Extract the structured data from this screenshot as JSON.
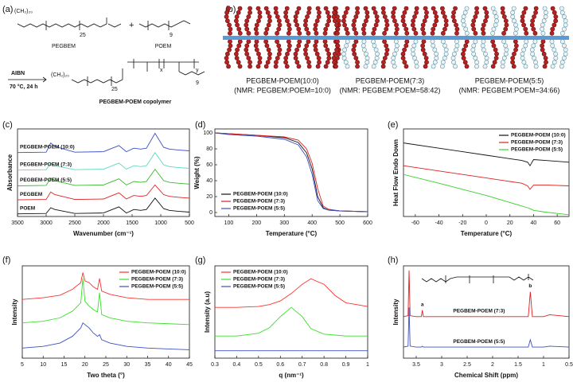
{
  "figure": {
    "panel_a": {
      "label": "(a)",
      "monomer1": {
        "alkyl": "(CH₂)₂₀",
        "repeat": "25",
        "name": "PEGBEM"
      },
      "plus": "+",
      "monomer2": {
        "repeat": "9",
        "name": "POEM"
      },
      "initiator": "AIBN",
      "conditions": "70 °C, 24 h",
      "product": {
        "alkyl": "(CH₂)₂₀",
        "repeat1": "25",
        "x": "x",
        "y": "y",
        "repeat2": "9",
        "name": "PEGBEM-POEM copolymer"
      }
    },
    "panel_b": {
      "label": "(b)",
      "brushes": [
        {
          "name": "PEGBEM-POEM(10:0)",
          "nmr": "(NMR: PEGBEM:POEM=10:0)"
        },
        {
          "name": "PEGBEM-POEM(7:3)",
          "nmr": "(NMR: PEGBEM:POEM=58:42)"
        },
        {
          "name": "PEGBEM-POEM(5:5)",
          "nmr": "(NMR: PEGBEM:POEM=34:66)"
        }
      ]
    }
  },
  "chart_data": [
    {
      "type": "line",
      "label": "(c)",
      "xlabel": "Wavenumber (cm⁻¹)",
      "ylabel": "Absorbance",
      "legend": "inline",
      "xlim": [
        3500,
        500
      ],
      "xticks": [
        3500,
        3000,
        2500,
        2000,
        1500,
        1000,
        500
      ],
      "ylim": [
        0,
        10
      ],
      "x": [
        3500,
        3000,
        2920,
        2850,
        2500,
        2000,
        1730,
        1600,
        1470,
        1350,
        1250,
        1100,
        950,
        850,
        700,
        500
      ],
      "series": [
        {
          "name": "PEGBEM-POEM (10:0)",
          "color": "#3b4fc4",
          "values": [
            7.3,
            7.35,
            8.4,
            8.0,
            7.35,
            7.4,
            8.1,
            7.4,
            7.8,
            7.7,
            7.8,
            9.5,
            7.9,
            7.7,
            7.6,
            7.5
          ]
        },
        {
          "name": "PEGBEM-POEM (7:3)",
          "color": "#5fd9c0",
          "values": [
            5.3,
            5.35,
            6.1,
            5.8,
            5.35,
            5.4,
            6.1,
            5.4,
            5.8,
            5.7,
            5.8,
            7.3,
            5.9,
            5.7,
            5.6,
            5.5
          ]
        },
        {
          "name": "PEGBEM-POEM (5:5)",
          "color": "#39b82c",
          "values": [
            3.5,
            3.55,
            4.4,
            4.1,
            3.55,
            3.6,
            4.3,
            3.6,
            4.0,
            3.9,
            4.0,
            5.4,
            4.1,
            3.9,
            3.8,
            3.7
          ]
        },
        {
          "name": "PEGBEM",
          "color": "#e02020",
          "values": [
            1.9,
            1.95,
            2.8,
            2.5,
            1.95,
            2.0,
            2.7,
            2.0,
            2.4,
            2.3,
            2.4,
            3.6,
            2.5,
            2.3,
            2.2,
            2.1
          ]
        },
        {
          "name": "POEM",
          "color": "#111111",
          "values": [
            0.3,
            0.35,
            1.0,
            0.8,
            0.35,
            0.4,
            1.1,
            0.4,
            0.8,
            0.7,
            0.8,
            2.1,
            0.9,
            0.7,
            0.6,
            0.5
          ]
        }
      ]
    },
    {
      "type": "line",
      "label": "(d)",
      "xlabel": "Temperature (°C)",
      "ylabel": "Weight (%)",
      "legend": "lower left",
      "xlim": [
        50,
        600
      ],
      "xticks": [
        100,
        200,
        300,
        400,
        500,
        600
      ],
      "ylim": [
        -5,
        105
      ],
      "yticks": [
        0,
        20,
        40,
        60,
        80,
        100
      ],
      "x": [
        50,
        100,
        200,
        300,
        350,
        380,
        400,
        420,
        440,
        460,
        500,
        600
      ],
      "series": [
        {
          "name": "PEGBEM-POEM (10:0)",
          "color": "#111111",
          "values": [
            100,
            99,
            97,
            94,
            88,
            75,
            55,
            20,
            6,
            3,
            2,
            1
          ]
        },
        {
          "name": "PEGBEM-POEM (7:3)",
          "color": "#e02020",
          "values": [
            100,
            99,
            97,
            95,
            91,
            80,
            62,
            30,
            8,
            4,
            2,
            1
          ]
        },
        {
          "name": "PEGBEM-POEM (5:5)",
          "color": "#3b4fc4",
          "values": [
            100,
            98,
            96,
            92,
            85,
            70,
            48,
            15,
            5,
            3,
            2,
            1
          ]
        }
      ]
    },
    {
      "type": "line",
      "label": "(e)",
      "xlabel": "Temperature (°C)",
      "ylabel": "Heat Flow Endo Down",
      "legend": "upper right",
      "xlim": [
        -70,
        70
      ],
      "xticks": [
        -60,
        -40,
        -20,
        0,
        20,
        40,
        60
      ],
      "ylim": [
        0,
        1
      ],
      "x": [
        -70,
        -40,
        -20,
        0,
        20,
        30,
        35,
        37,
        40,
        50,
        70
      ],
      "series": [
        {
          "name": "PEGBEM-POEM (10:0)",
          "color": "#111111",
          "values": [
            0.84,
            0.78,
            0.74,
            0.7,
            0.66,
            0.64,
            0.62,
            0.58,
            0.65,
            0.64,
            0.62
          ]
        },
        {
          "name": "PEGBEM-POEM (7:3)",
          "color": "#e02020",
          "values": [
            0.58,
            0.52,
            0.48,
            0.44,
            0.4,
            0.38,
            0.35,
            0.31,
            0.36,
            0.36,
            0.35
          ]
        },
        {
          "name": "PEGBEM-POEM (5:5)",
          "color": "#39d12c",
          "values": [
            0.48,
            0.38,
            0.31,
            0.24,
            0.16,
            0.12,
            0.1,
            0.09,
            0.07,
            0.05,
            0.02
          ]
        }
      ]
    },
    {
      "type": "line",
      "label": "(f)",
      "xlabel": "Two theta (°)",
      "ylabel": "Intensity",
      "legend": "upper right",
      "xlim": [
        5,
        45
      ],
      "xticks": [
        5,
        10,
        15,
        20,
        25,
        30,
        35,
        40,
        45
      ],
      "ylim": [
        0,
        1.1
      ],
      "x": [
        5,
        10,
        14,
        17,
        19,
        19.5,
        20,
        21,
        22,
        23,
        23.5,
        24,
        26,
        30,
        35,
        40,
        45
      ],
      "series": [
        {
          "name": "PEGBEM-POEM (10:0)",
          "color": "#ff3030",
          "values": [
            0.7,
            0.72,
            0.75,
            0.82,
            0.9,
            1.02,
            0.92,
            0.9,
            0.85,
            0.82,
            0.95,
            0.8,
            0.76,
            0.72,
            0.7,
            0.7,
            0.7
          ]
        },
        {
          "name": "PEGBEM-POEM (7:3)",
          "color": "#39e02c",
          "values": [
            0.42,
            0.44,
            0.48,
            0.56,
            0.66,
            0.95,
            0.68,
            0.62,
            0.58,
            0.55,
            0.78,
            0.52,
            0.48,
            0.44,
            0.42,
            0.41,
            0.4
          ]
        },
        {
          "name": "PEGBEM-POEM (5:5)",
          "color": "#3b4fc4",
          "values": [
            0.12,
            0.14,
            0.18,
            0.26,
            0.36,
            0.42,
            0.4,
            0.36,
            0.3,
            0.26,
            0.28,
            0.22,
            0.18,
            0.14,
            0.12,
            0.11,
            0.1
          ]
        }
      ]
    },
    {
      "type": "line",
      "label": "(g)",
      "xlabel": "q (nm⁻¹)",
      "ylabel": "Intensity (a.u)",
      "legend": "upper left",
      "xlim": [
        0.3,
        1.0
      ],
      "xticks": [
        0.3,
        0.4,
        0.5,
        0.6,
        0.7,
        0.8,
        0.9,
        1.0
      ],
      "ylim": [
        0,
        1
      ],
      "x": [
        0.3,
        0.4,
        0.5,
        0.55,
        0.6,
        0.65,
        0.7,
        0.74,
        0.8,
        0.85,
        0.9,
        1.0
      ],
      "series": [
        {
          "name": "PEGBEM-POEM (10:0)",
          "color": "#ff3030",
          "values": [
            0.55,
            0.55,
            0.56,
            0.58,
            0.62,
            0.7,
            0.8,
            0.86,
            0.8,
            0.68,
            0.6,
            0.56
          ]
        },
        {
          "name": "PEGBEM-POEM (7:3)",
          "color": "#39e02c",
          "values": [
            0.24,
            0.24,
            0.27,
            0.33,
            0.45,
            0.55,
            0.45,
            0.32,
            0.26,
            0.25,
            0.24,
            0.24
          ]
        },
        {
          "name": "PEGBEM-POEM (5:5)",
          "color": "#3b4fc4",
          "values": [
            0.08,
            0.08,
            0.08,
            0.08,
            0.08,
            0.08,
            0.08,
            0.08,
            0.08,
            0.08,
            0.08,
            0.08
          ]
        }
      ]
    },
    {
      "type": "line",
      "label": "(h)",
      "xlabel": "Chemical Shift (ppm)",
      "ylabel": "Intensity",
      "legend": "inline",
      "xlim": [
        3.75,
        0.5
      ],
      "xticks": [
        3.5,
        3.0,
        2.5,
        2.0,
        1.5,
        1.0,
        0.5
      ],
      "ylim": [
        0,
        1
      ],
      "annotations": [
        "a",
        "b"
      ],
      "x": [
        3.75,
        3.66,
        3.64,
        3.62,
        3.5,
        3.4,
        3.38,
        3.36,
        3.0,
        2.0,
        1.3,
        1.26,
        1.22,
        1.0,
        0.88,
        0.5
      ],
      "series": [
        {
          "name": "PEGBEM-POEM (7:3)",
          "color": "#e02020",
          "values": [
            0.45,
            0.46,
            0.95,
            0.46,
            0.45,
            0.45,
            0.52,
            0.45,
            0.45,
            0.45,
            0.45,
            0.72,
            0.45,
            0.45,
            0.47,
            0.45
          ]
        },
        {
          "name": "PEGBEM-POEM (5:5)",
          "color": "#3b4fc4",
          "values": [
            0.12,
            0.13,
            0.55,
            0.13,
            0.12,
            0.12,
            0.13,
            0.12,
            0.12,
            0.12,
            0.12,
            0.2,
            0.12,
            0.12,
            0.13,
            0.12
          ]
        }
      ]
    }
  ]
}
